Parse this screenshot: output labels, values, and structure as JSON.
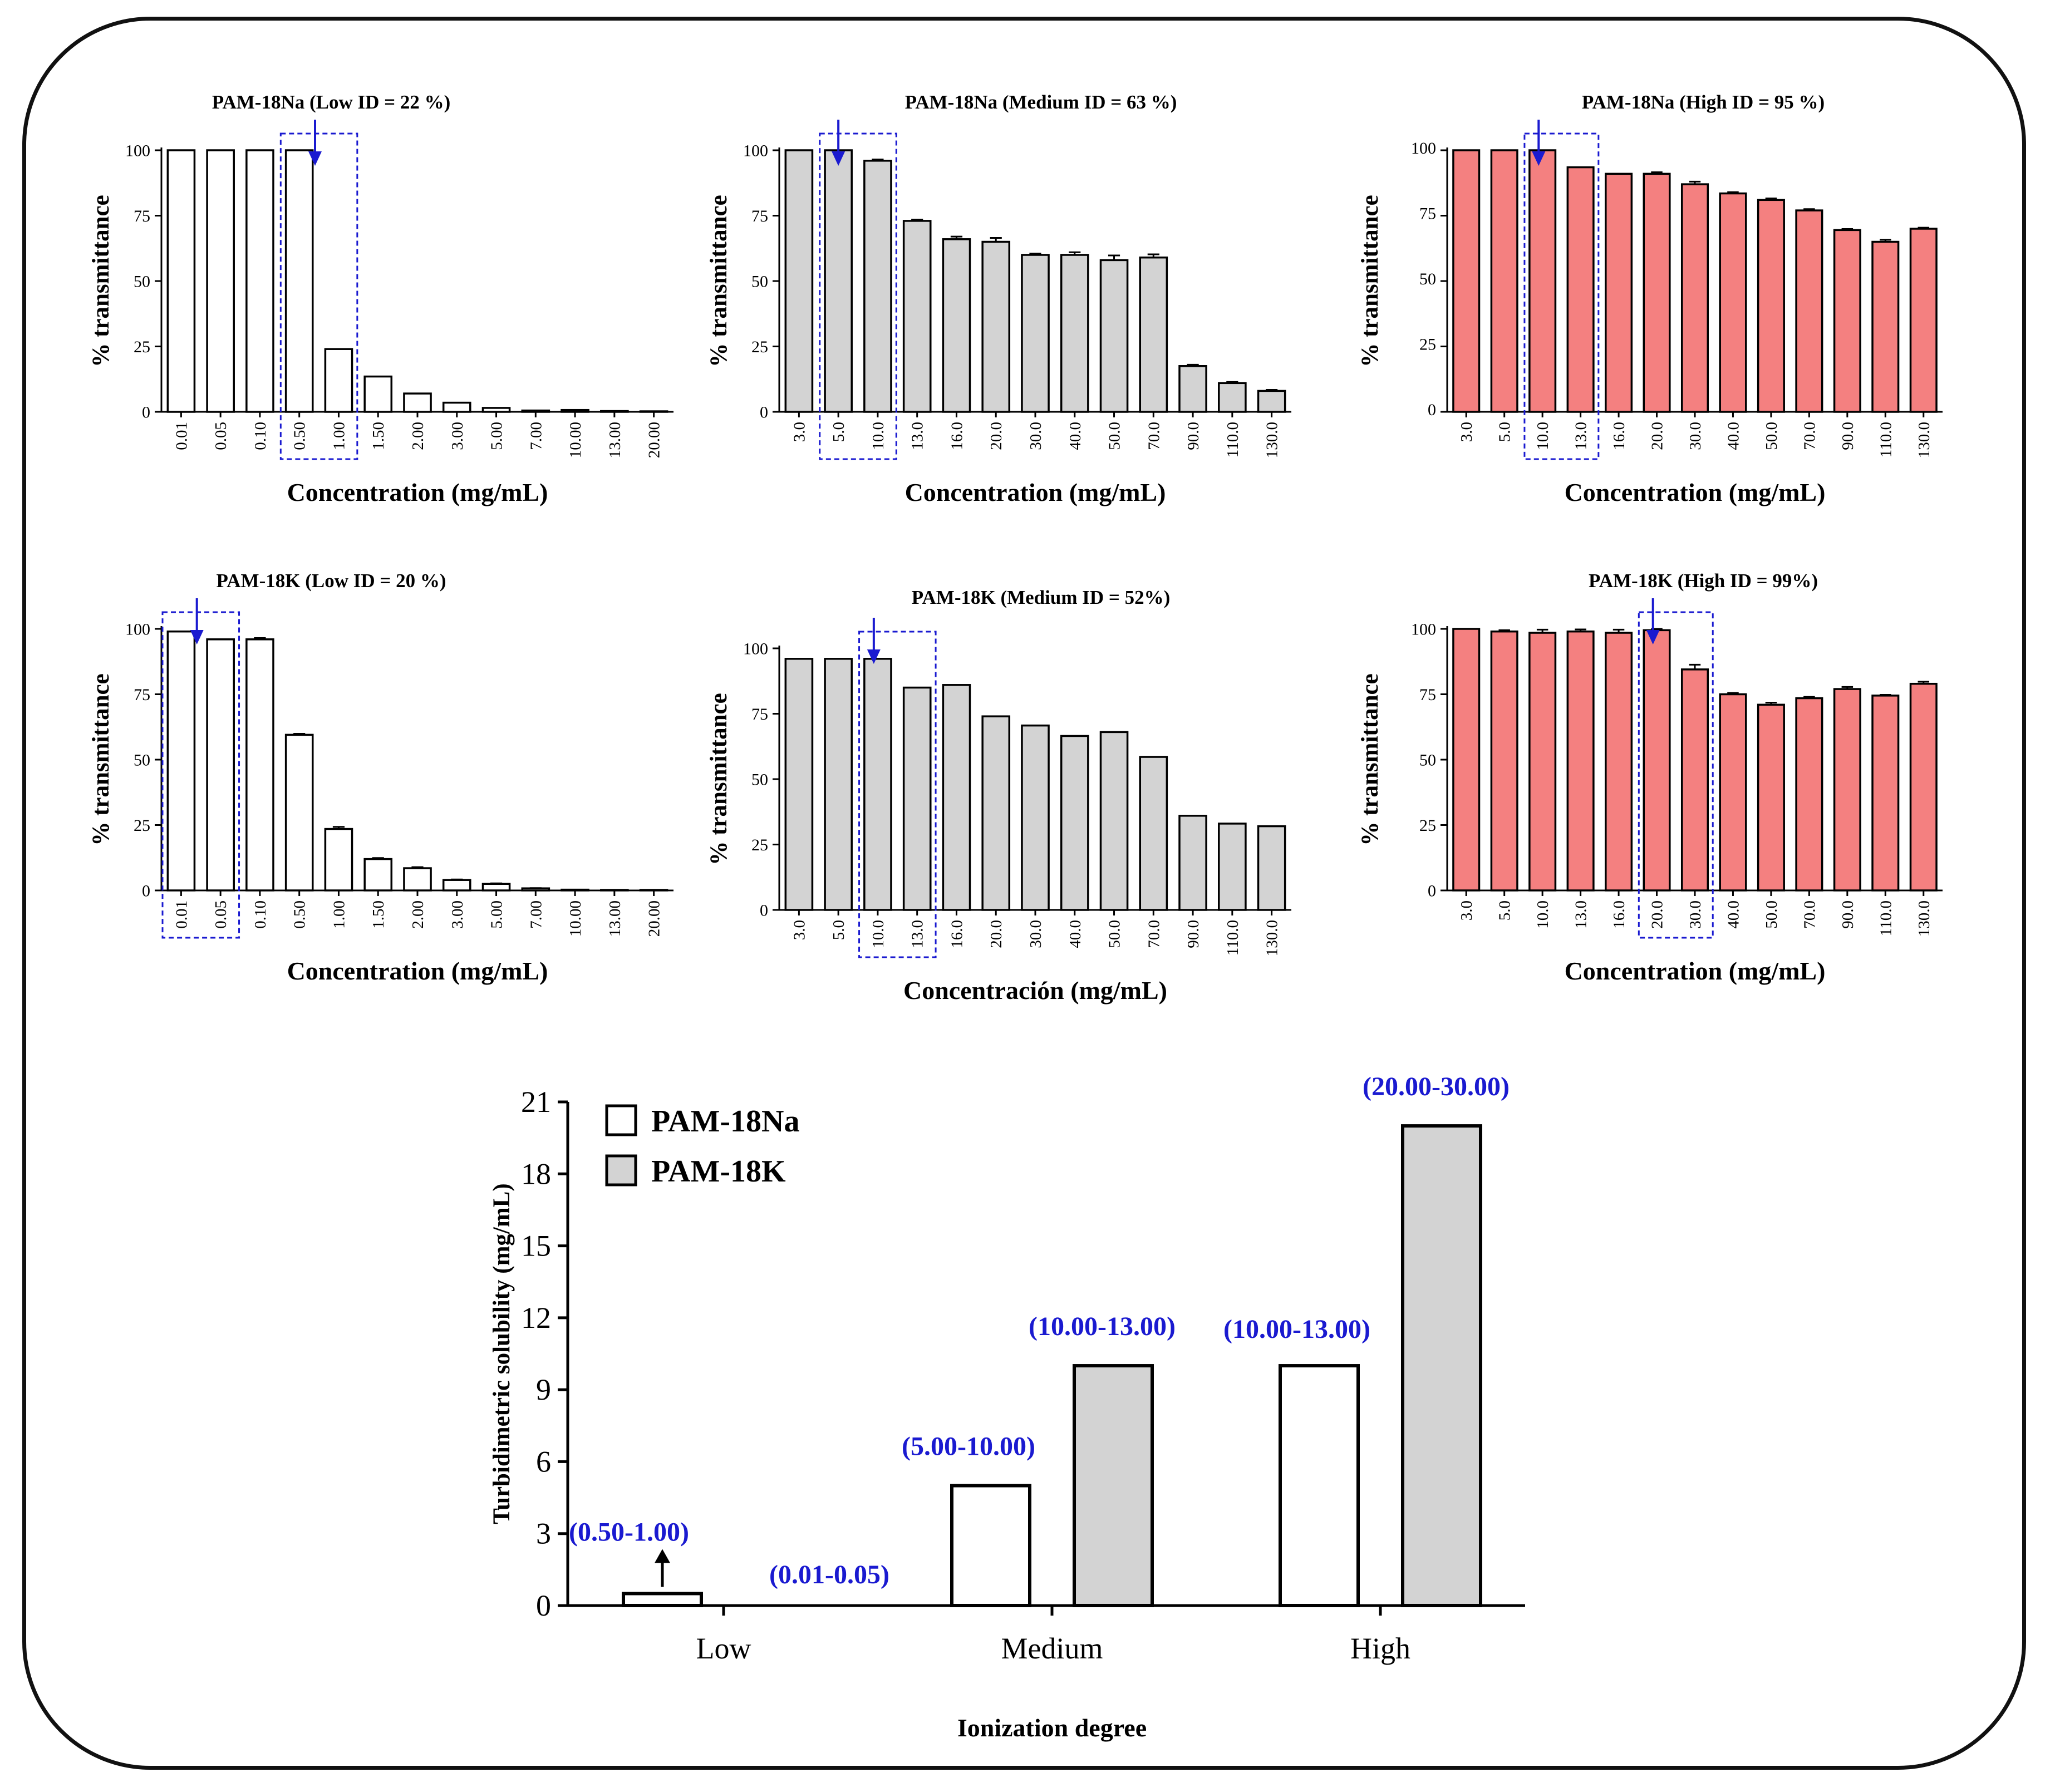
{
  "colors": {
    "na_low": "#ffffff",
    "grey": "#d3d3d3",
    "red": "#f48080",
    "annotation": "#1a1ad0",
    "arrow": "#1a1ad0",
    "axis": "#000000"
  },
  "chart_data": [
    {
      "id": "p1",
      "type": "bar",
      "title": "PAM-18Na (Low ID = 22 %)",
      "ylabel": "% transmittance",
      "xlabel": "Concentration (mg/mL)",
      "fill": "#ffffff",
      "ylim": [
        0,
        100
      ],
      "yticks": [
        "0",
        "25",
        "50",
        "75",
        "100"
      ],
      "categories": [
        "0.01",
        "0.05",
        "0.10",
        "0.50",
        "1.00",
        "1.50",
        "2.00",
        "3.00",
        "5.00",
        "7.00",
        "10.00",
        "13.00",
        "20.00"
      ],
      "values": [
        100,
        100,
        100,
        100,
        24,
        13.5,
        7,
        3.5,
        1.5,
        0.5,
        0.7,
        0.3,
        0.2
      ],
      "errors": [
        0,
        0,
        0,
        0,
        0,
        0,
        0,
        0,
        0,
        0,
        0,
        0,
        0
      ],
      "highlight": [
        3,
        4
      ],
      "arrow_at": 3.9
    },
    {
      "id": "p2",
      "type": "bar",
      "title": "PAM-18Na (Medium ID = 63 %)",
      "ylabel": "% transmittance",
      "xlabel": "Concentration (mg/mL)",
      "fill": "#d3d3d3",
      "ylim": [
        0,
        100
      ],
      "yticks": [
        "0",
        "25",
        "50",
        "75",
        "100"
      ],
      "categories": [
        "3.0",
        "5.0",
        "10.0",
        "13.0",
        "16.0",
        "20.0",
        "30.0",
        "40.0",
        "50.0",
        "70.0",
        "90.0",
        "110.0",
        "130.0"
      ],
      "values": [
        100,
        100,
        96,
        73,
        66,
        65,
        60,
        60,
        58,
        59,
        17.5,
        11,
        8
      ],
      "errors": [
        0,
        0,
        0.5,
        0.5,
        1,
        1.5,
        0.5,
        1,
        1.8,
        1.2,
        0.5,
        0.4,
        0.4
      ],
      "highlight": [
        1,
        2
      ],
      "arrow_at": 1.5
    },
    {
      "id": "p3",
      "type": "bar",
      "title": "PAM-18Na (High ID = 95 %)",
      "ylabel": "% transmittance",
      "xlabel": "Concentration (mg/mL)",
      "fill": "#f48080",
      "ylim": [
        0,
        100
      ],
      "yticks": [
        "0",
        "25",
        "50",
        "75",
        "100"
      ],
      "categories": [
        "3.0",
        "5.0",
        "10.0",
        "13.0",
        "16.0",
        "20.0",
        "30.0",
        "40.0",
        "50.0",
        "70.0",
        "90.0",
        "110.0",
        "130.0"
      ],
      "values": [
        100,
        100,
        100,
        93.5,
        91,
        91,
        87,
        83.5,
        81,
        77,
        69.5,
        65,
        70
      ],
      "errors": [
        0,
        0,
        0,
        0,
        0,
        0.6,
        1,
        0.5,
        0.6,
        0.5,
        0.4,
        0.8,
        0.4
      ],
      "highlight": [
        2,
        3
      ],
      "arrow_at": 2.4
    },
    {
      "id": "p4",
      "type": "bar",
      "title": "PAM-18K (Low ID = 20 %)",
      "ylabel": "% transmittance",
      "xlabel": "Concentration (mg/mL)",
      "fill": "#ffffff",
      "ylim": [
        0,
        100
      ],
      "yticks": [
        "0",
        "25",
        "50",
        "75",
        "100"
      ],
      "categories": [
        "0.01",
        "0.05",
        "0.10",
        "0.50",
        "1.00",
        "1.50",
        "2.00",
        "3.00",
        "5.00",
        "7.00",
        "10.00",
        "13.00",
        "20.00"
      ],
      "values": [
        99,
        96,
        96,
        59.5,
        23.5,
        12,
        8.5,
        4,
        2.5,
        0.8,
        0.3,
        0.2,
        0.2
      ],
      "errors": [
        0,
        0,
        0.5,
        0.4,
        0.8,
        0.4,
        0.4,
        0.2,
        0.2,
        0.1,
        0,
        0,
        0
      ],
      "highlight": [
        0,
        1
      ],
      "arrow_at": 0.9
    },
    {
      "id": "p5",
      "type": "bar",
      "title": "PAM-18K (Medium ID = 52%)",
      "ylabel": "% transmittance",
      "xlabel": "Concentración (mg/mL)",
      "fill": "#d3d3d3",
      "ylim": [
        0,
        100
      ],
      "yticks": [
        "0",
        "25",
        "50",
        "75",
        "100"
      ],
      "categories": [
        "3.0",
        "5.0",
        "10.0",
        "13.0",
        "16.0",
        "20.0",
        "30.0",
        "40.0",
        "50.0",
        "70.0",
        "90.0",
        "110.0",
        "130.0"
      ],
      "values": [
        96,
        96,
        96,
        85,
        86,
        74,
        70.5,
        66.5,
        68,
        58.5,
        36,
        33,
        32
      ],
      "errors": [
        0,
        0,
        0,
        0,
        0,
        0,
        0,
        0,
        0,
        0,
        0,
        0,
        0
      ],
      "highlight": [
        2,
        3
      ],
      "arrow_at": 2.4
    },
    {
      "id": "p6",
      "type": "bar",
      "title": "PAM-18K (High ID = 99%)",
      "ylabel": "% transmittance",
      "xlabel": "Concentration (mg/mL)",
      "fill": "#f48080",
      "ylim": [
        0,
        100
      ],
      "yticks": [
        "0",
        "25",
        "50",
        "75",
        "100"
      ],
      "categories": [
        "3.0",
        "5.0",
        "10.0",
        "13.0",
        "16.0",
        "20.0",
        "30.0",
        "40.0",
        "50.0",
        "70.0",
        "90.0",
        "110.0",
        "130.0"
      ],
      "values": [
        100,
        99,
        98.5,
        99,
        98.5,
        99.5,
        84.5,
        75,
        71,
        73.5,
        77,
        74.5,
        79
      ],
      "errors": [
        0,
        0.5,
        1.2,
        0.8,
        1.2,
        0.5,
        1.8,
        0.5,
        0.8,
        0.5,
        0.8,
        0.3,
        0.8
      ],
      "highlight": [
        5,
        6
      ],
      "arrow_at": 5.4
    },
    {
      "id": "summary",
      "type": "bar",
      "ylabel": "Turbidimetric solubility (mg/mL)",
      "xlabel": "Ionization degree",
      "categories": [
        "Low",
        "Medium",
        "High"
      ],
      "ylim": [
        0,
        21
      ],
      "yticks": [
        "0",
        "3",
        "6",
        "9",
        "12",
        "15",
        "18",
        "21"
      ],
      "series": [
        {
          "name": "PAM-18Na",
          "fill": "#ffffff",
          "values": [
            0.5,
            5,
            10
          ],
          "labels": [
            "(0.50-1.00)",
            "(5.00-10.00)",
            "(10.00-13.00)"
          ]
        },
        {
          "name": "PAM-18K",
          "fill": "#d3d3d3",
          "values": [
            0,
            10,
            20
          ],
          "labels": [
            "(0.01-0.05)",
            "(10.00-13.00)",
            "(20.00-30.00)"
          ]
        }
      ]
    }
  ]
}
